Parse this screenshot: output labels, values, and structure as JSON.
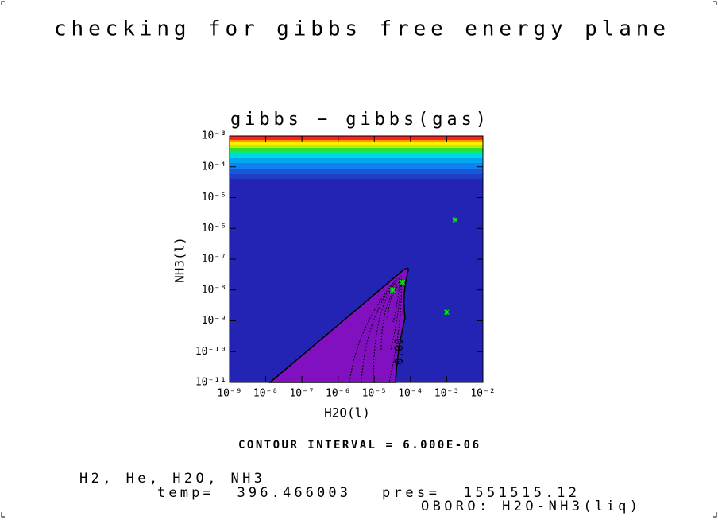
{
  "chart_data": {
    "type": "contour",
    "suptitle": "checking for gibbs free energy plane",
    "title": "gibbs − gibbs(gas)",
    "x_label": "H2O(l)",
    "y_label": "NH3(l)",
    "xlog": true,
    "ylog": true,
    "xlim": [
      1e-09,
      0.01
    ],
    "ylim": [
      1e-11,
      0.001
    ],
    "xticks": [
      {
        "value": 1e-09,
        "label": "10⁻⁹"
      },
      {
        "value": 1e-08,
        "label": "10⁻⁸"
      },
      {
        "value": 1e-07,
        "label": "10⁻⁷"
      },
      {
        "value": 1e-06,
        "label": "10⁻⁶"
      },
      {
        "value": 1e-05,
        "label": "10⁻⁵"
      },
      {
        "value": 0.0001,
        "label": "10⁻⁴"
      },
      {
        "value": 0.001,
        "label": "10⁻³"
      },
      {
        "value": 0.01,
        "label": "10⁻²"
      }
    ],
    "yticks": [
      {
        "value": 1e-11,
        "label": "10⁻¹¹"
      },
      {
        "value": 1e-10,
        "label": "10⁻¹⁰"
      },
      {
        "value": 1e-09,
        "label": "10⁻⁹"
      },
      {
        "value": 1e-08,
        "label": "10⁻⁸"
      },
      {
        "value": 1e-07,
        "label": "10⁻⁷"
      },
      {
        "value": 1e-06,
        "label": "10⁻⁶"
      },
      {
        "value": 1e-05,
        "label": "10⁻⁵"
      },
      {
        "value": 0.0001,
        "label": "10⁻⁴"
      },
      {
        "value": 0.001,
        "label": "10⁻³"
      }
    ],
    "contour_label": "0.00",
    "x": [
      0.0017,
      0.001,
      3.2e-05,
      6e-05
    ],
    "y": [
      1.9e-06,
      1.9e-09,
      1e-08,
      1.8e-08
    ],
    "marker_color": "#00ff00",
    "annotations": [
      "CONTOUR INTERVAL = 6.000E-06",
      "H2, He, H2O, NH3",
      "temp=  396.466003",
      "pres=  1551515.12",
      "OBORO: H2O-NH3(liq)"
    ]
  }
}
